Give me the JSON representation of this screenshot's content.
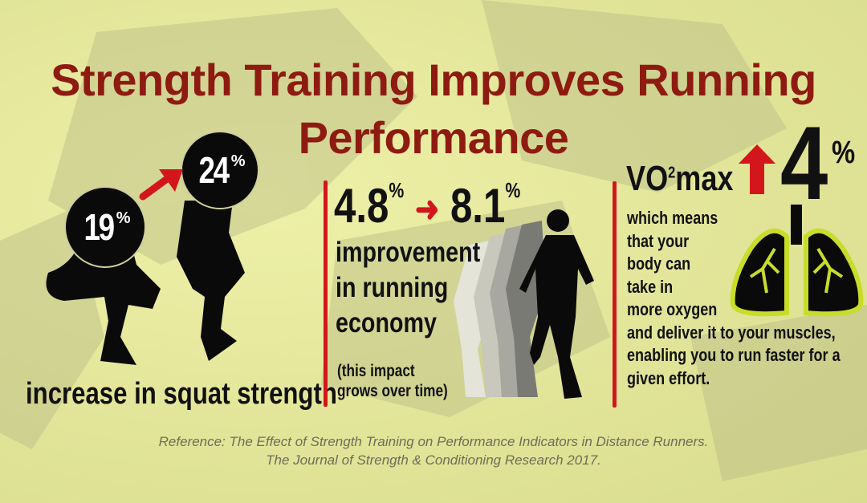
{
  "title": {
    "line1": "Strength Training Improves Running",
    "line2": "Performance"
  },
  "squat": {
    "before_value": "19",
    "before_unit": "%",
    "after_value": "24",
    "after_unit": "%",
    "caption": "increase in squat strength"
  },
  "economy": {
    "from_value": "4.8",
    "from_unit": "%",
    "to_value": "8.1",
    "to_unit": "%",
    "caption_lines": [
      "improvement",
      "in running",
      "economy"
    ],
    "note_lines": [
      "(this impact",
      "grows over time)"
    ]
  },
  "vo2": {
    "label_prefix": "VO",
    "label_sup": "2",
    "label_suffix": "max",
    "value": "4",
    "unit": "%",
    "lines": [
      "which means",
      "that your",
      "body can",
      "take in",
      "more oxygen",
      "and deliver it to your muscles,",
      "enabling you to run faster for a",
      "given effort."
    ]
  },
  "reference": {
    "line1": "Reference: The Effect of Strength Training on Performance Indicators in Distance Runners.",
    "line2": "The Journal of Strength & Conditioning Research 2017."
  },
  "colors": {
    "title": "#8e1b12",
    "accent_red": "#d3161b",
    "background": "#e3e69a",
    "lung_outline": "#c8dc2a"
  },
  "icons": [
    "arrow-up-right-icon",
    "arrow-right-icon",
    "arrow-up-icon",
    "lungs-icon",
    "squat-silhouette",
    "runner-silhouette"
  ]
}
